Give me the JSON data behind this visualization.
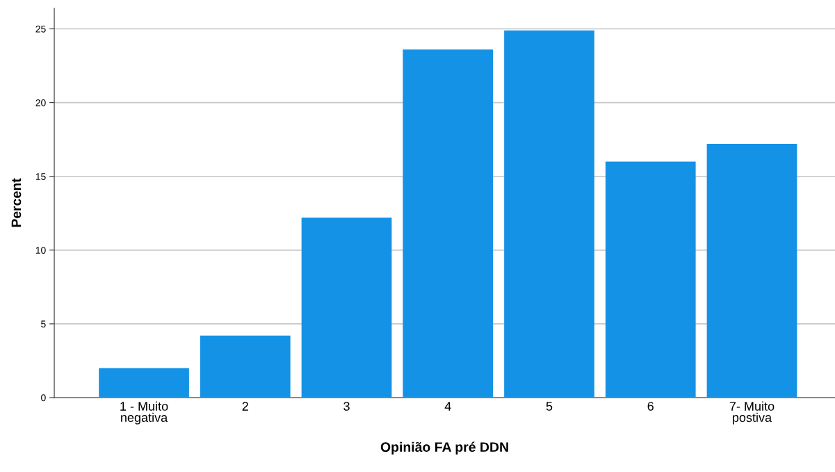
{
  "chart_data": {
    "type": "bar",
    "xlabel": "Opinião FA pré DDN",
    "ylabel": "Percent",
    "categories": [
      "1 - Muito\nnegativa",
      "2",
      "3",
      "4",
      "5",
      "6",
      "7- Muito\npostiva"
    ],
    "values": [
      2.0,
      4.2,
      12.2,
      23.6,
      24.9,
      16.0,
      17.2
    ],
    "color": "#1492e6",
    "ylim": [
      0,
      26.4
    ],
    "yticks": [
      0,
      5,
      10,
      15,
      20,
      25
    ],
    "grid": "y",
    "legend": false
  }
}
